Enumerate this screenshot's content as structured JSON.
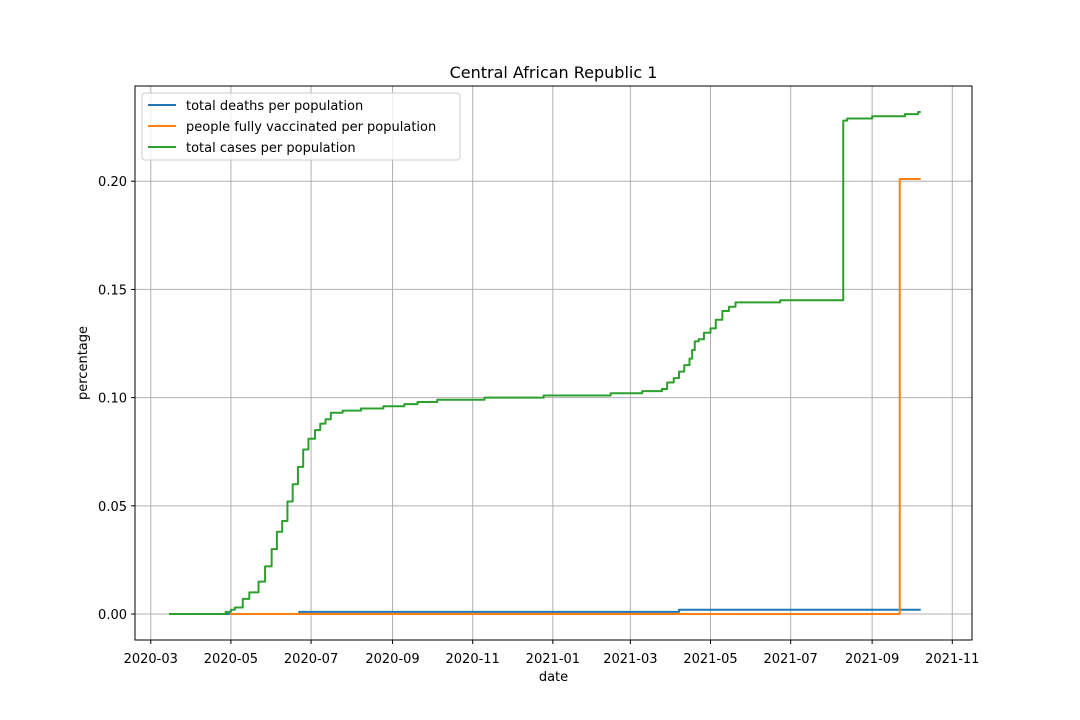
{
  "chart_data": {
    "type": "line",
    "title": "Central African Republic 1",
    "xlabel": "date",
    "ylabel": "percentage",
    "xlim": [
      "2020-02-18",
      "2021-11-16"
    ],
    "ylim": [
      -0.012,
      0.244
    ],
    "grid": true,
    "legend_position": "top-left",
    "x_ticks": [
      "2020-03",
      "2020-05",
      "2020-07",
      "2020-09",
      "2020-11",
      "2021-01",
      "2021-03",
      "2021-05",
      "2021-07",
      "2021-09",
      "2021-11"
    ],
    "x_tick_dates": [
      "2020-03-01",
      "2020-05-01",
      "2020-07-01",
      "2020-09-01",
      "2020-11-01",
      "2021-01-01",
      "2021-03-01",
      "2021-05-01",
      "2021-07-01",
      "2021-09-01",
      "2021-11-01"
    ],
    "y_ticks": [
      "0.00",
      "0.05",
      "0.10",
      "0.15",
      "0.20"
    ],
    "y_tick_values": [
      0.0,
      0.05,
      0.1,
      0.15,
      0.2
    ],
    "series": [
      {
        "name": "total deaths per population",
        "color": "#1f77b4",
        "points": [
          [
            "2020-03-15",
            0.0
          ],
          [
            "2020-06-21",
            0.0
          ],
          [
            "2020-06-22",
            0.001
          ],
          [
            "2021-04-06",
            0.001
          ],
          [
            "2021-04-07",
            0.002
          ],
          [
            "2021-10-08",
            0.002
          ]
        ]
      },
      {
        "name": "people fully vaccinated per population",
        "color": "#ff7f0e",
        "points": [
          [
            "2020-04-30",
            0.0
          ],
          [
            "2021-09-21",
            0.0
          ],
          [
            "2021-09-22",
            0.201
          ],
          [
            "2021-10-08",
            0.201
          ]
        ]
      },
      {
        "name": "total cases per population",
        "color": "#2ca02c",
        "points": [
          [
            "2020-03-15",
            0.0
          ],
          [
            "2020-04-25",
            0.0
          ],
          [
            "2020-04-27",
            0.001
          ],
          [
            "2020-05-01",
            0.002
          ],
          [
            "2020-05-04",
            0.003
          ],
          [
            "2020-05-10",
            0.007
          ],
          [
            "2020-05-15",
            0.01
          ],
          [
            "2020-05-22",
            0.015
          ],
          [
            "2020-05-27",
            0.022
          ],
          [
            "2020-06-01",
            0.03
          ],
          [
            "2020-06-05",
            0.038
          ],
          [
            "2020-06-09",
            0.043
          ],
          [
            "2020-06-13",
            0.052
          ],
          [
            "2020-06-17",
            0.06
          ],
          [
            "2020-06-21",
            0.068
          ],
          [
            "2020-06-25",
            0.076
          ],
          [
            "2020-06-29",
            0.081
          ],
          [
            "2020-07-04",
            0.085
          ],
          [
            "2020-07-08",
            0.088
          ],
          [
            "2020-07-12",
            0.09
          ],
          [
            "2020-07-16",
            0.093
          ],
          [
            "2020-07-25",
            0.094
          ],
          [
            "2020-08-08",
            0.095
          ],
          [
            "2020-08-25",
            0.096
          ],
          [
            "2020-09-10",
            0.097
          ],
          [
            "2020-09-20",
            0.098
          ],
          [
            "2020-10-05",
            0.099
          ],
          [
            "2020-11-10",
            0.1
          ],
          [
            "2020-12-25",
            0.101
          ],
          [
            "2021-02-14",
            0.102
          ],
          [
            "2021-03-10",
            0.103
          ],
          [
            "2021-03-25",
            0.104
          ],
          [
            "2021-03-29",
            0.107
          ],
          [
            "2021-04-03",
            0.109
          ],
          [
            "2021-04-07",
            0.112
          ],
          [
            "2021-04-11",
            0.115
          ],
          [
            "2021-04-15",
            0.118
          ],
          [
            "2021-04-17",
            0.122
          ],
          [
            "2021-04-19",
            0.126
          ],
          [
            "2021-04-22",
            0.127
          ],
          [
            "2021-04-26",
            0.13
          ],
          [
            "2021-05-01",
            0.132
          ],
          [
            "2021-05-05",
            0.136
          ],
          [
            "2021-05-10",
            0.14
          ],
          [
            "2021-05-15",
            0.142
          ],
          [
            "2021-05-20",
            0.144
          ],
          [
            "2021-06-23",
            0.145
          ],
          [
            "2021-08-09",
            0.145
          ],
          [
            "2021-08-10",
            0.228
          ],
          [
            "2021-08-13",
            0.229
          ],
          [
            "2021-09-01",
            0.23
          ],
          [
            "2021-09-26",
            0.231
          ],
          [
            "2021-10-06",
            0.232
          ],
          [
            "2021-10-08",
            0.232
          ]
        ]
      }
    ]
  }
}
